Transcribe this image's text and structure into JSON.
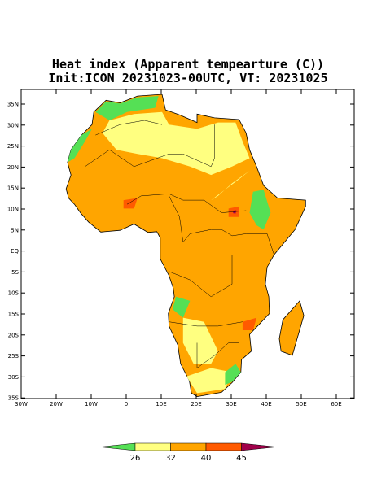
{
  "title": "Heat index (Apparent tempearture (C))",
  "subtitle": "Init:ICON 20231023-00UTC, VT: 20231025",
  "lat_labels": [
    "35N",
    "30N",
    "25N",
    "20N",
    "15N",
    "10N",
    "5N",
    "EQ",
    "5S",
    "10S",
    "15S",
    "20S",
    "25S",
    "30S",
    "35S"
  ],
  "lon_labels": [
    "30W",
    "20W",
    "10W",
    "0",
    "10E",
    "20E",
    "30E",
    "40E",
    "50E",
    "60E"
  ],
  "colorbar": {
    "ticks": [
      26,
      32,
      40,
      45
    ],
    "colors": [
      "#55e055",
      "#ffff80",
      "#ffa500",
      "#ff5a00",
      "#a0004a"
    ]
  }
}
